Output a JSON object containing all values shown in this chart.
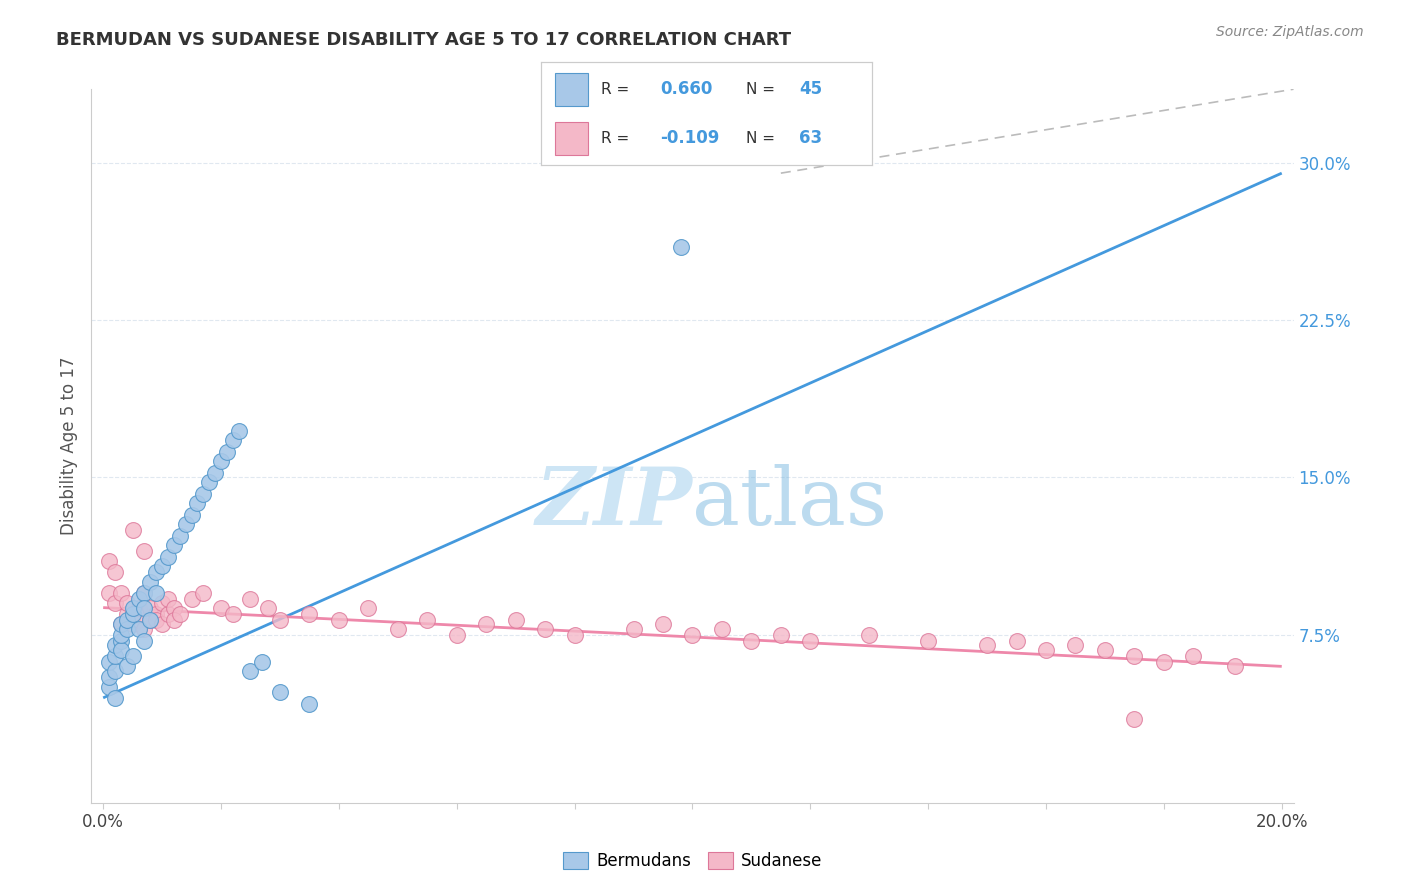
{
  "title": "BERMUDAN VS SUDANESE DISABILITY AGE 5 TO 17 CORRELATION CHART",
  "source": "Source: ZipAtlas.com",
  "ylabel": "Disability Age 5 to 17",
  "y_ticks": [
    0.075,
    0.15,
    0.225,
    0.3
  ],
  "y_tick_labels": [
    "7.5%",
    "15.0%",
    "22.5%",
    "30.0%"
  ],
  "x_lim": [
    -0.002,
    0.202
  ],
  "y_lim": [
    -0.005,
    0.335
  ],
  "bermudans_label": "Bermudans",
  "sudanese_label": "Sudanese",
  "r_bermudans": 0.66,
  "n_bermudans": 45,
  "r_sudanese": -0.109,
  "n_sudanese": 63,
  "blue_color": "#a8c8e8",
  "blue_edge": "#5599cc",
  "pink_color": "#f4b8c8",
  "pink_edge": "#dd7799",
  "blue_line_color": "#4499dd",
  "pink_line_color": "#ee88aa",
  "dashed_color": "#bbbbbb",
  "watermark_color": "#cde5f5",
  "grid_color": "#e0e8f0",
  "bermudans_x": [
    0.001,
    0.001,
    0.001,
    0.002,
    0.002,
    0.002,
    0.002,
    0.003,
    0.003,
    0.003,
    0.003,
    0.004,
    0.004,
    0.004,
    0.005,
    0.005,
    0.005,
    0.006,
    0.006,
    0.007,
    0.007,
    0.007,
    0.008,
    0.008,
    0.009,
    0.009,
    0.01,
    0.011,
    0.012,
    0.013,
    0.014,
    0.015,
    0.016,
    0.017,
    0.018,
    0.019,
    0.02,
    0.021,
    0.022,
    0.023,
    0.025,
    0.027,
    0.03,
    0.035,
    0.098
  ],
  "bermudans_y": [
    0.05,
    0.055,
    0.062,
    0.058,
    0.065,
    0.07,
    0.045,
    0.072,
    0.068,
    0.075,
    0.08,
    0.078,
    0.082,
    0.06,
    0.085,
    0.088,
    0.065,
    0.092,
    0.078,
    0.095,
    0.088,
    0.072,
    0.1,
    0.082,
    0.105,
    0.095,
    0.108,
    0.112,
    0.118,
    0.122,
    0.128,
    0.132,
    0.138,
    0.142,
    0.148,
    0.152,
    0.158,
    0.162,
    0.168,
    0.172,
    0.058,
    0.062,
    0.048,
    0.042,
    0.26
  ],
  "sudanese_x": [
    0.001,
    0.001,
    0.002,
    0.002,
    0.003,
    0.003,
    0.004,
    0.004,
    0.005,
    0.005,
    0.005,
    0.006,
    0.006,
    0.007,
    0.007,
    0.007,
    0.008,
    0.008,
    0.009,
    0.009,
    0.01,
    0.01,
    0.011,
    0.011,
    0.012,
    0.012,
    0.013,
    0.015,
    0.017,
    0.02,
    0.022,
    0.025,
    0.028,
    0.03,
    0.035,
    0.04,
    0.045,
    0.05,
    0.055,
    0.06,
    0.065,
    0.07,
    0.075,
    0.08,
    0.09,
    0.095,
    0.1,
    0.105,
    0.11,
    0.115,
    0.12,
    0.13,
    0.14,
    0.15,
    0.155,
    0.16,
    0.165,
    0.17,
    0.175,
    0.18,
    0.185,
    0.192,
    0.175
  ],
  "sudanese_y": [
    0.095,
    0.11,
    0.09,
    0.105,
    0.08,
    0.095,
    0.085,
    0.09,
    0.08,
    0.085,
    0.125,
    0.082,
    0.088,
    0.078,
    0.095,
    0.115,
    0.082,
    0.088,
    0.085,
    0.082,
    0.08,
    0.09,
    0.085,
    0.092,
    0.088,
    0.082,
    0.085,
    0.092,
    0.095,
    0.088,
    0.085,
    0.092,
    0.088,
    0.082,
    0.085,
    0.082,
    0.088,
    0.078,
    0.082,
    0.075,
    0.08,
    0.082,
    0.078,
    0.075,
    0.078,
    0.08,
    0.075,
    0.078,
    0.072,
    0.075,
    0.072,
    0.075,
    0.072,
    0.07,
    0.072,
    0.068,
    0.07,
    0.068,
    0.065,
    0.062,
    0.065,
    0.06,
    0.035
  ],
  "blue_trendline_x": [
    0.0,
    0.2
  ],
  "blue_trendline_y": [
    0.045,
    0.295
  ],
  "pink_trendline_x": [
    0.0,
    0.2
  ],
  "pink_trendline_y": [
    0.088,
    0.06
  ],
  "dashed_line_x": [
    0.115,
    0.202
  ],
  "dashed_line_y": [
    0.295,
    0.335
  ]
}
